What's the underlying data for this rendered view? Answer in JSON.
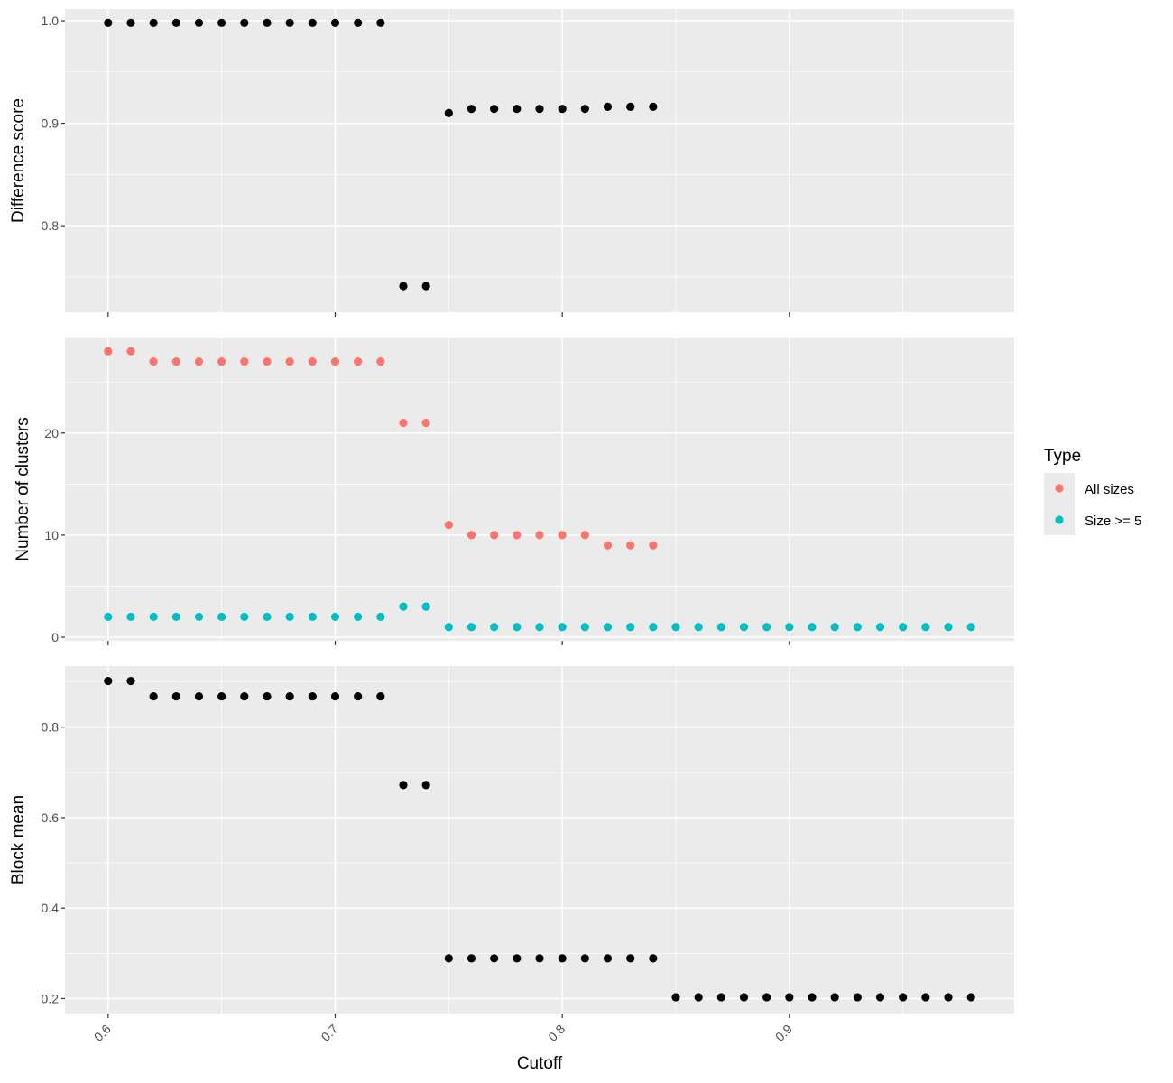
{
  "chart_data": {
    "type": "scatter",
    "xlabel": "Cutoff",
    "xlim": [
      0.581,
      0.999
    ],
    "xticks": [
      0.6,
      0.7,
      0.8,
      0.9
    ],
    "xtick_labels": [
      "0.6",
      "0.7",
      "0.8",
      "0.9"
    ],
    "grid": true,
    "legend_position": "right",
    "legend": {
      "title": "Type",
      "entries": [
        {
          "label": "All sizes",
          "color": "#F8766D"
        },
        {
          "label": "Size >= 5",
          "color": "#00BFC4"
        }
      ]
    },
    "panels": [
      {
        "ylabel": "Difference score",
        "ylim": [
          0.7155,
          1.0115
        ],
        "yticks": [
          0.8,
          0.9,
          1.0
        ],
        "ytick_labels": [
          "0.8",
          "0.9",
          "1.0"
        ],
        "series": [
          {
            "color": "#000000",
            "x": [
              0.6,
              0.61,
              0.62,
              0.63,
              0.64,
              0.65,
              0.66,
              0.67,
              0.68,
              0.69,
              0.7,
              0.71,
              0.72,
              0.73,
              0.74,
              0.75,
              0.76,
              0.77,
              0.78,
              0.79,
              0.8,
              0.81,
              0.82,
              0.83,
              0.84
            ],
            "y": [
              0.998,
              0.998,
              0.998,
              0.998,
              0.998,
              0.998,
              0.998,
              0.998,
              0.998,
              0.998,
              0.998,
              0.998,
              0.998,
              0.741,
              0.741,
              0.91,
              0.914,
              0.914,
              0.914,
              0.914,
              0.914,
              0.914,
              0.916,
              0.916,
              0.916
            ]
          }
        ]
      },
      {
        "ylabel": "Number of clusters",
        "ylim": [
          -0.35,
          29.35
        ],
        "yticks": [
          0,
          10,
          20
        ],
        "ytick_labels": [
          "0",
          "10",
          "20"
        ],
        "series": [
          {
            "name": "All sizes",
            "color": "#F8766D",
            "x": [
              0.6,
              0.61,
              0.62,
              0.63,
              0.64,
              0.65,
              0.66,
              0.67,
              0.68,
              0.69,
              0.7,
              0.71,
              0.72,
              0.73,
              0.74,
              0.75,
              0.76,
              0.77,
              0.78,
              0.79,
              0.8,
              0.81,
              0.82,
              0.83,
              0.84
            ],
            "y": [
              28,
              28,
              27,
              27,
              27,
              27,
              27,
              27,
              27,
              27,
              27,
              27,
              27,
              21,
              21,
              11,
              10,
              10,
              10,
              10,
              10,
              10,
              9,
              9,
              9
            ]
          },
          {
            "name": "Size >= 5",
            "color": "#00BFC4",
            "x": [
              0.6,
              0.61,
              0.62,
              0.63,
              0.64,
              0.65,
              0.66,
              0.67,
              0.68,
              0.69,
              0.7,
              0.71,
              0.72,
              0.73,
              0.74,
              0.75,
              0.76,
              0.77,
              0.78,
              0.79,
              0.8,
              0.81,
              0.82,
              0.83,
              0.84,
              0.85,
              0.86,
              0.87,
              0.88,
              0.89,
              0.9,
              0.91,
              0.92,
              0.93,
              0.94,
              0.95,
              0.96,
              0.97,
              0.98
            ],
            "y": [
              2,
              2,
              2,
              2,
              2,
              2,
              2,
              2,
              2,
              2,
              2,
              2,
              2,
              3,
              3,
              1,
              1,
              1,
              1,
              1,
              1,
              1,
              1,
              1,
              1,
              1,
              1,
              1,
              1,
              1,
              1,
              1,
              1,
              1,
              1,
              1,
              1,
              1,
              1
            ]
          }
        ]
      },
      {
        "ylabel": "Block mean",
        "ylim": [
          0.167,
          0.935
        ],
        "yticks": [
          0.2,
          0.4,
          0.6,
          0.8
        ],
        "ytick_labels": [
          "0.2",
          "0.4",
          "0.6",
          "0.8"
        ],
        "series": [
          {
            "color": "#000000",
            "x": [
              0.6,
              0.61,
              0.62,
              0.63,
              0.64,
              0.65,
              0.66,
              0.67,
              0.68,
              0.69,
              0.7,
              0.71,
              0.72,
              0.73,
              0.74,
              0.75,
              0.76,
              0.77,
              0.78,
              0.79,
              0.8,
              0.81,
              0.82,
              0.83,
              0.84,
              0.85,
              0.86,
              0.87,
              0.88,
              0.89,
              0.9,
              0.91,
              0.92,
              0.93,
              0.94,
              0.95,
              0.96,
              0.97,
              0.98
            ],
            "y": [
              0.902,
              0.902,
              0.868,
              0.868,
              0.868,
              0.868,
              0.868,
              0.868,
              0.868,
              0.868,
              0.868,
              0.868,
              0.868,
              0.672,
              0.672,
              0.289,
              0.289,
              0.289,
              0.289,
              0.289,
              0.289,
              0.289,
              0.289,
              0.289,
              0.289,
              0.203,
              0.203,
              0.203,
              0.203,
              0.203,
              0.203,
              0.203,
              0.203,
              0.203,
              0.203,
              0.203,
              0.203,
              0.203,
              0.203
            ]
          }
        ]
      }
    ]
  }
}
